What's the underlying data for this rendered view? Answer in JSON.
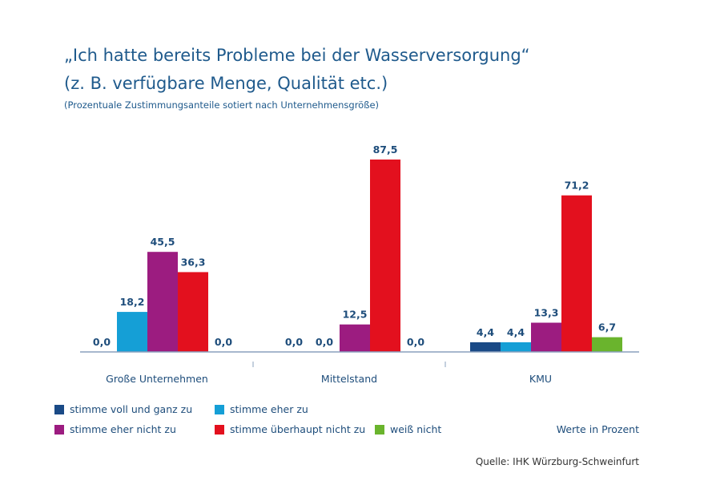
{
  "header": {
    "title_line1": "„Ich hatte bereits Probleme bei der Wasserversorgung“",
    "title_line2": "(z. B. verfügbare Menge, Qualität etc.)",
    "subtitle": "(Prozentuale Zustimmungsanteile sotiert nach Unternehmensgröße)"
  },
  "chart_data": {
    "type": "bar",
    "categories": [
      "Große Unternehmen",
      "Mittelstand",
      "KMU"
    ],
    "series": [
      {
        "name": "stimme voll und ganz zu",
        "color": "#1a4a86",
        "values": [
          0.0,
          0.0,
          4.4
        ]
      },
      {
        "name": "stimme eher zu",
        "color": "#159fd6",
        "values": [
          18.2,
          0.0,
          4.4
        ]
      },
      {
        "name": "stimme eher nicht zu",
        "color": "#9c1c80",
        "values": [
          45.5,
          12.5,
          13.3
        ]
      },
      {
        "name": "stimme überhaupt nicht zu",
        "color": "#e3101e",
        "values": [
          36.3,
          87.5,
          71.2
        ]
      },
      {
        "name": "weiß nicht",
        "color": "#6ab42d",
        "values": [
          0.0,
          0.0,
          6.7
        ]
      }
    ],
    "value_labels": [
      [
        "0,0",
        "0,0",
        "4,4"
      ],
      [
        "18,2",
        "0,0",
        "4,4"
      ],
      [
        "45,5",
        "12,5",
        "13,3"
      ],
      [
        "36,3",
        "87,5",
        "71,2"
      ],
      [
        "0,0",
        "0,0",
        "6,7"
      ]
    ],
    "ylim": [
      0,
      87.5
    ],
    "grid": false,
    "legend_placement": "bottom"
  },
  "footer": {
    "note": "Werte in Prozent",
    "source": "Quelle: IHK Würzburg-Schweinfurt"
  }
}
